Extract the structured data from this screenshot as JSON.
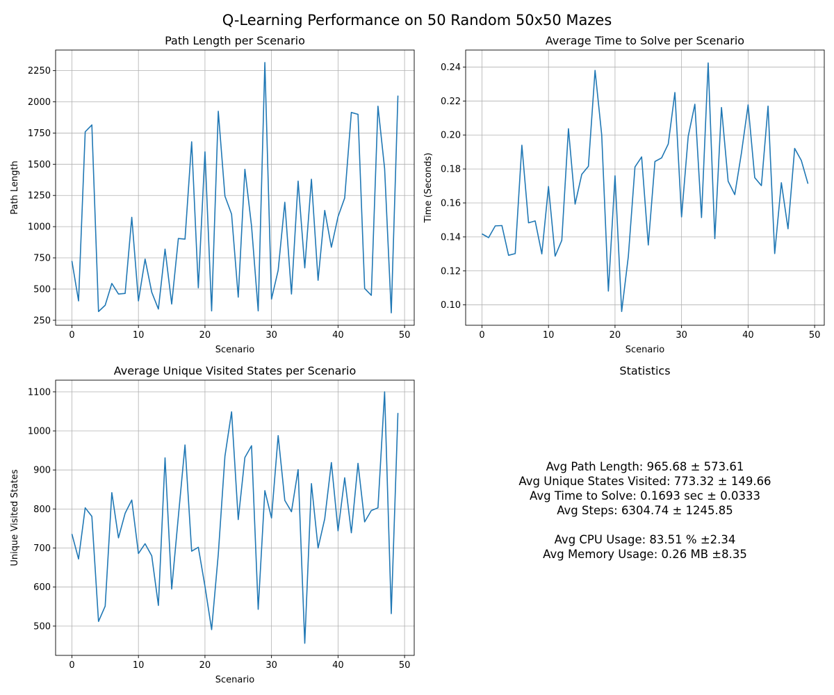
{
  "suptitle": "Q-Learning Performance on 50 Random 50x50 Mazes",
  "chart_data": [
    {
      "type": "line",
      "title": "Path Length per Scenario",
      "xlabel": "Scenario",
      "ylabel": "Path Length",
      "xlim": [
        -2.45,
        51.45
      ],
      "ylim": [
        210,
        2415
      ],
      "xticks": [
        0,
        10,
        20,
        30,
        40,
        50
      ],
      "yticks": [
        250,
        500,
        750,
        1000,
        1250,
        1500,
        1750,
        2000,
        2250
      ],
      "grid": true,
      "line_color": "#1f77b4",
      "x": [
        0,
        1,
        2,
        3,
        4,
        5,
        6,
        7,
        8,
        9,
        10,
        11,
        12,
        13,
        14,
        15,
        16,
        17,
        18,
        19,
        20,
        21,
        22,
        23,
        24,
        25,
        26,
        27,
        28,
        29,
        30,
        31,
        32,
        33,
        34,
        35,
        36,
        37,
        38,
        39,
        40,
        41,
        42,
        43,
        44,
        45,
        46,
        47,
        48,
        49
      ],
      "values": [
        725,
        405,
        1760,
        1815,
        320,
        370,
        545,
        460,
        465,
        1075,
        405,
        740,
        475,
        340,
        820,
        380,
        905,
        900,
        1680,
        510,
        1600,
        325,
        1925,
        1245,
        1100,
        435,
        1460,
        1005,
        325,
        2315,
        420,
        650,
        1195,
        460,
        1365,
        670,
        1380,
        570,
        1130,
        835,
        1080,
        1230,
        1915,
        1900,
        505,
        450,
        1965,
        1465,
        310,
        2050
      ]
    },
    {
      "type": "line",
      "title": "Average Time to Solve per Scenario",
      "xlabel": "Scenario",
      "ylabel": "Time (Seconds)",
      "xlim": [
        -2.45,
        51.45
      ],
      "ylim": [
        0.088,
        0.25
      ],
      "xticks": [
        0,
        10,
        20,
        30,
        40,
        50
      ],
      "yticks": [
        0.1,
        0.12,
        0.14,
        0.16,
        0.18,
        0.2,
        0.22,
        0.24
      ],
      "grid": true,
      "line_color": "#1f77b4",
      "x": [
        0,
        1,
        2,
        3,
        4,
        5,
        6,
        7,
        8,
        9,
        10,
        11,
        12,
        13,
        14,
        15,
        16,
        17,
        18,
        19,
        20,
        21,
        22,
        23,
        24,
        25,
        26,
        27,
        28,
        29,
        30,
        31,
        32,
        33,
        34,
        35,
        36,
        37,
        38,
        39,
        40,
        41,
        42,
        43,
        44,
        45,
        46,
        47,
        48,
        49
      ],
      "values": [
        0.1418,
        0.1396,
        0.1465,
        0.1467,
        0.1292,
        0.1302,
        0.194,
        0.1483,
        0.1494,
        0.13,
        0.1697,
        0.1287,
        0.138,
        0.2037,
        0.1593,
        0.1768,
        0.1816,
        0.238,
        0.2,
        0.1081,
        0.176,
        0.0961,
        0.1285,
        0.1812,
        0.1871,
        0.1352,
        0.1844,
        0.1865,
        0.1947,
        0.225,
        0.1518,
        0.1992,
        0.2181,
        0.1514,
        0.2424,
        0.139,
        0.2162,
        0.1728,
        0.1649,
        0.1894,
        0.2177,
        0.1749,
        0.1702,
        0.217,
        0.1302,
        0.1719,
        0.1448,
        0.1921,
        0.185,
        0.1713
      ]
    },
    {
      "type": "line",
      "title": "Average Unique Visited States per Scenario",
      "xlabel": "Scenario",
      "ylabel": "Unique Visited States",
      "xlim": [
        -2.45,
        51.45
      ],
      "ylim": [
        425,
        1130
      ],
      "xticks": [
        0,
        10,
        20,
        30,
        40,
        50
      ],
      "yticks": [
        500,
        600,
        700,
        800,
        900,
        1000,
        1100
      ],
      "grid": true,
      "line_color": "#1f77b4",
      "x": [
        0,
        1,
        2,
        3,
        4,
        5,
        6,
        7,
        8,
        9,
        10,
        11,
        12,
        13,
        14,
        15,
        16,
        17,
        18,
        19,
        20,
        21,
        22,
        23,
        24,
        25,
        26,
        27,
        28,
        29,
        30,
        31,
        32,
        33,
        34,
        35,
        36,
        37,
        38,
        39,
        40,
        41,
        42,
        43,
        44,
        45,
        46,
        47,
        48,
        49
      ],
      "values": [
        736,
        672,
        803,
        781,
        512,
        551,
        842,
        726,
        789,
        823,
        686,
        711,
        680,
        553,
        931,
        595,
        781,
        964,
        692,
        702,
        602,
        491,
        684,
        935,
        1049,
        773,
        932,
        962,
        543,
        847,
        777,
        988,
        822,
        793,
        901,
        456,
        865,
        700,
        775,
        919,
        744,
        880,
        739,
        917,
        767,
        796,
        803,
        1100,
        532,
        1046
      ]
    }
  ],
  "stats": {
    "title": "Statistics",
    "lines": [
      "Avg Path Length: 965.68 ± 573.61",
      "Avg Unique States Visited: 773.32 ± 149.66",
      "Avg Time to Solve: 0.1693 sec ± 0.0333",
      "Avg Steps: 6304.74 ± 1245.85",
      "",
      "Avg CPU Usage: 83.51 % ±2.34",
      "Avg Memory Usage: 0.26 MB ±8.35"
    ]
  }
}
